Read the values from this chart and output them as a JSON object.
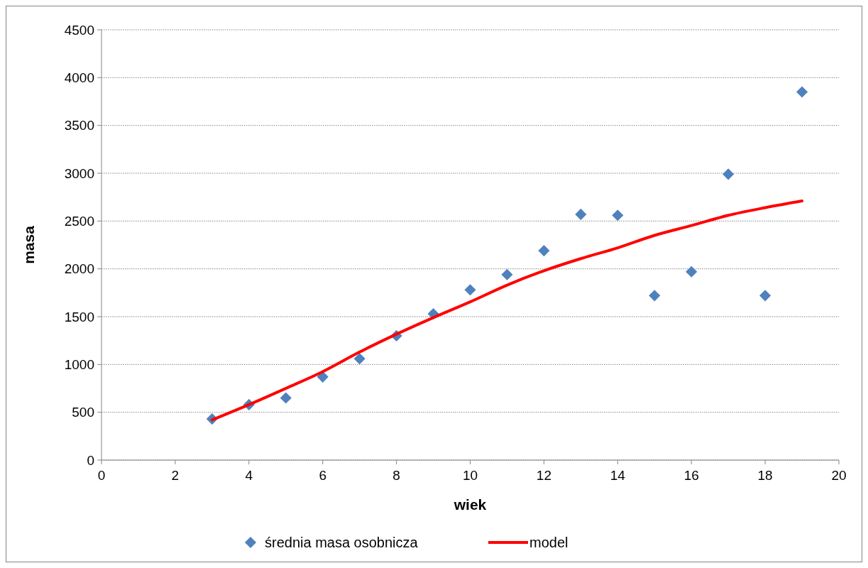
{
  "chart_data": {
    "type": "scatter",
    "xlabel": "wiek",
    "ylabel": "masa",
    "xlim": [
      0,
      20
    ],
    "xticks": [
      0,
      2,
      4,
      6,
      8,
      10,
      12,
      14,
      16,
      18,
      20
    ],
    "ylim": [
      0,
      4500
    ],
    "yticks": [
      0,
      500,
      1000,
      1500,
      2000,
      2500,
      3000,
      3500,
      4000,
      4500
    ],
    "grid": "y",
    "legend": "bottom",
    "series": [
      {
        "name": "średnia masa osobnicza",
        "color": "#4f81bd",
        "marker": "diamond",
        "x": [
          3,
          4,
          5,
          6,
          7,
          8,
          9,
          10,
          11,
          12,
          13,
          14,
          15,
          16,
          17,
          18,
          19
        ],
        "values": [
          430,
          580,
          650,
          870,
          1060,
          1300,
          1530,
          1780,
          1940,
          2190,
          2570,
          2560,
          1720,
          1970,
          2990,
          1720,
          3850
        ]
      },
      {
        "name": "model",
        "type": "line",
        "color": "#ff0000",
        "line_style": "solid",
        "x": [
          3,
          4,
          5,
          6,
          7,
          8,
          9,
          10,
          11,
          12,
          13,
          14,
          15,
          16,
          17,
          18,
          19
        ],
        "values": [
          420,
          580,
          750,
          925,
          1130,
          1317,
          1490,
          1655,
          1830,
          1980,
          2107,
          2220,
          2350,
          2453,
          2560,
          2640,
          2710
        ]
      }
    ]
  }
}
